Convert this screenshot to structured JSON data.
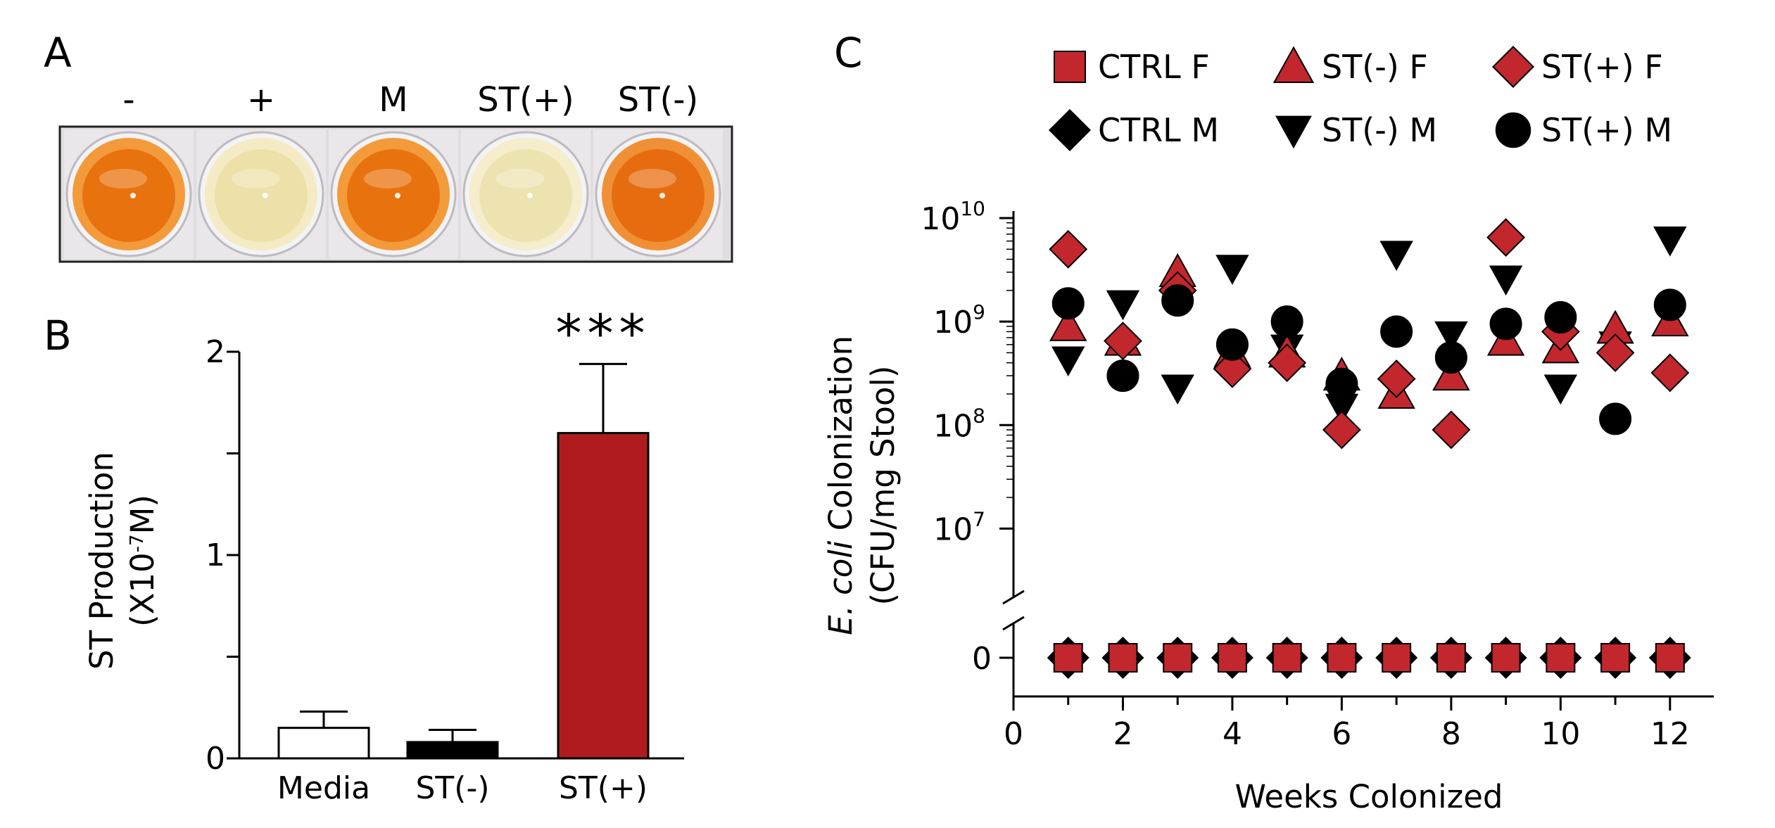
{
  "panels": {
    "a": "A",
    "b": "B",
    "c": "C"
  },
  "panel_a": {
    "wells": [
      {
        "label": "-",
        "color": "#E8720E",
        "rim": "#F39A3B"
      },
      {
        "label": "+",
        "color": "#EDE0A8",
        "rim": "#F4EBC5"
      },
      {
        "label": "M",
        "color": "#E8720E",
        "rim": "#F39A3B"
      },
      {
        "label": "ST(+)",
        "color": "#EDE3B0",
        "rim": "#F5EDCB"
      },
      {
        "label": "ST(-)",
        "color": "#E76C10",
        "rim": "#F09036"
      }
    ]
  },
  "chart_data": [
    {
      "type": "bar",
      "panel": "B",
      "categories": [
        "Media",
        "ST(-)",
        "ST(+)"
      ],
      "values": [
        0.15,
        0.08,
        1.6
      ],
      "errors": [
        0.08,
        0.06,
        0.34
      ],
      "colors": [
        "#FFFFFF",
        "#000000",
        "#B01C1E"
      ],
      "significance": "***",
      "ylabel": "ST Production",
      "ylabel2": "(X10",
      "ylabel2_sup": "-7",
      "ylabel2_end": "M)",
      "ylim": [
        0,
        2
      ],
      "yticks": [
        0,
        1,
        2
      ],
      "ytick_labels": [
        "0",
        "1",
        "2"
      ]
    },
    {
      "type": "scatter",
      "panel": "C",
      "xlabel": "Weeks Colonized",
      "ylabel_italic": "E. coli",
      "ylabel_rest": " Colonization",
      "ylabel2": "(CFU/mg Stool)",
      "xlim": [
        0,
        12.8
      ],
      "xticks": [
        "0",
        "2",
        "4",
        "6",
        "8",
        "10",
        "12"
      ],
      "ylim_log10": [
        6.5,
        10
      ],
      "ytick_base": "10",
      "ytick_exps": [
        "10",
        "9",
        "8",
        "7"
      ],
      "zero_label": "0",
      "legend": [
        {
          "key": "ctrlF",
          "label": "CTRL F",
          "marker": "square",
          "color": "#C1272D"
        },
        {
          "key": "stmF",
          "label": "ST(-) F",
          "marker": "triangle-up",
          "color": "#C1272D"
        },
        {
          "key": "stpF",
          "label": "ST(+) F",
          "marker": "diamond",
          "color": "#C1272D"
        },
        {
          "key": "ctrlM",
          "label": "CTRL M",
          "marker": "diamond",
          "color": "#000000"
        },
        {
          "key": "stmM",
          "label": "ST(-) M",
          "marker": "triangle-down",
          "color": "#000000"
        },
        {
          "key": "stpM",
          "label": "ST(+) M",
          "marker": "circle",
          "color": "#000000"
        }
      ],
      "series": [
        {
          "key": "stmM",
          "name": "ST(-) M",
          "points": [
            [
              1,
              430000000.0
            ],
            [
              2,
              1500000000.0
            ],
            [
              3,
              230000000.0
            ],
            [
              4,
              3300000000.0
            ],
            [
              5,
              560000000.0
            ],
            [
              6,
              150000000.0
            ],
            [
              7,
              4500000000.0
            ],
            [
              8,
              750000000.0
            ],
            [
              9,
              2600000000.0
            ],
            [
              10,
              230000000.0
            ],
            [
              11,
              600000000.0
            ],
            [
              12,
              6200000000.0
            ]
          ]
        },
        {
          "key": "stmF",
          "name": "ST(-) F",
          "points": [
            [
              1,
              900000000.0
            ],
            [
              2,
              650000000.0
            ],
            [
              3,
              3000000000.0
            ],
            [
              4,
              500000000.0
            ],
            [
              5,
              500000000.0
            ],
            [
              6,
              300000000.0
            ],
            [
              7,
              200000000.0
            ],
            [
              8,
              300000000.0
            ],
            [
              9,
              650000000.0
            ],
            [
              10,
              550000000.0
            ],
            [
              11,
              850000000.0
            ],
            [
              12,
              1000000000.0
            ]
          ]
        },
        {
          "key": "stpF",
          "name": "ST(+) F",
          "points": [
            [
              1,
              5000000000.0
            ],
            [
              2,
              650000000.0
            ],
            [
              3,
              2000000000.0
            ],
            [
              4,
              350000000.0
            ],
            [
              5,
              400000000.0
            ],
            [
              6,
              90000000.0
            ],
            [
              7,
              280000000.0
            ],
            [
              8,
              90000000.0
            ],
            [
              9,
              6500000000.0
            ],
            [
              10,
              800000000.0
            ],
            [
              11,
              500000000.0
            ],
            [
              12,
              320000000.0
            ]
          ]
        },
        {
          "key": "stpM",
          "name": "ST(+) M",
          "points": [
            [
              1,
              1500000000.0
            ],
            [
              2,
              300000000.0
            ],
            [
              3,
              1600000000.0
            ],
            [
              4,
              600000000.0
            ],
            [
              5,
              1000000000.0
            ],
            [
              6,
              250000000.0
            ],
            [
              7,
              800000000.0
            ],
            [
              8,
              450000000.0
            ],
            [
              9,
              950000000.0
            ],
            [
              10,
              1100000000.0
            ],
            [
              11,
              115000000.0
            ],
            [
              12,
              1450000000.0
            ]
          ]
        },
        {
          "key": "ctrlM",
          "name": "CTRL M",
          "zero": true,
          "points": [
            [
              1,
              0
            ],
            [
              2,
              0
            ],
            [
              3,
              0
            ],
            [
              4,
              0
            ],
            [
              5,
              0
            ],
            [
              6,
              0
            ],
            [
              7,
              0
            ],
            [
              8,
              0
            ],
            [
              9,
              0
            ],
            [
              10,
              0
            ],
            [
              11,
              0
            ],
            [
              12,
              0
            ]
          ]
        },
        {
          "key": "ctrlF",
          "name": "CTRL F",
          "zero": true,
          "points": [
            [
              1,
              0
            ],
            [
              2,
              0
            ],
            [
              3,
              0
            ],
            [
              4,
              0
            ],
            [
              5,
              0
            ],
            [
              6,
              0
            ],
            [
              7,
              0
            ],
            [
              8,
              0
            ],
            [
              9,
              0
            ],
            [
              10,
              0
            ],
            [
              11,
              0
            ],
            [
              12,
              0
            ]
          ]
        }
      ]
    }
  ]
}
